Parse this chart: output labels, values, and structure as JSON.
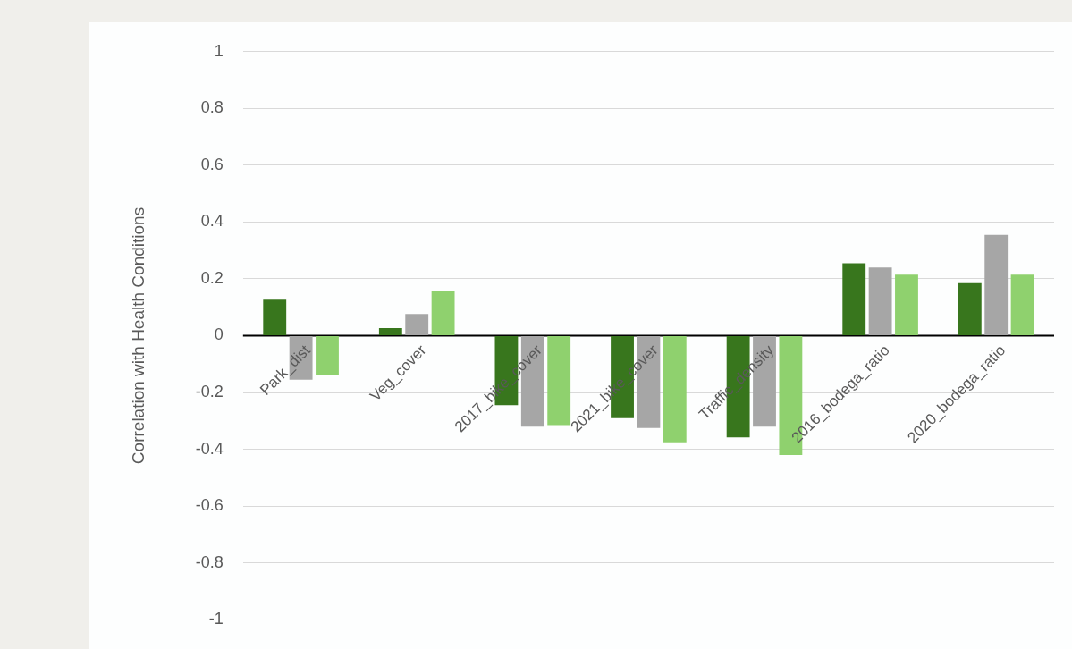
{
  "chart_data": {
    "type": "bar",
    "ylabel": "Correlation with Health Conditions",
    "categories": [
      "Park_dist",
      "Veg_cover",
      "2017_bike_cover",
      "2021_bike_cover",
      "Traffic_density",
      "2016_bodega_ratio",
      "2020_bodega_ratio"
    ],
    "series": [
      {
        "color": "#38761d",
        "values": [
          0.127,
          0.027,
          -0.245,
          -0.29,
          -0.358,
          0.255,
          0.185
        ]
      },
      {
        "color": "#a6a6a6",
        "values": [
          -0.155,
          0.076,
          -0.32,
          -0.325,
          -0.32,
          0.24,
          0.355
        ]
      },
      {
        "color": "#8fd16e",
        "values": [
          -0.14,
          0.158,
          -0.315,
          -0.375,
          -0.42,
          0.215,
          0.215
        ]
      }
    ],
    "ylim": [
      -1,
      1
    ],
    "yticks": [
      -1,
      -0.8,
      -0.6,
      -0.4,
      -0.2,
      0,
      0.2,
      0.4,
      0.6,
      0.8,
      1
    ],
    "grid": "y",
    "legend": false
  }
}
